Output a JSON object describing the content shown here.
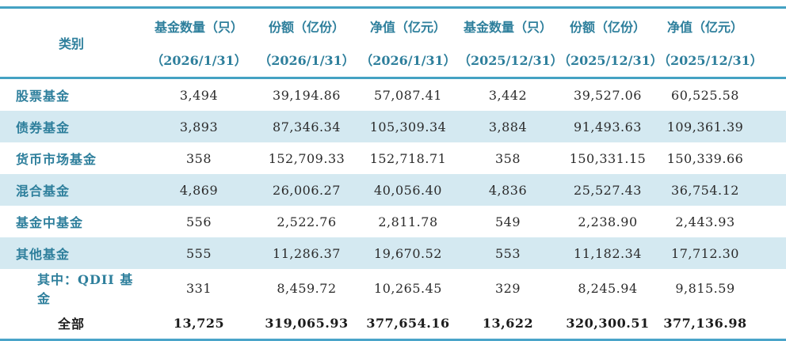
{
  "table": {
    "title_hint": "公募基金市场数据统计表",
    "columns": [
      {
        "title": "类别",
        "subtitle": ""
      },
      {
        "title": "基金数量（只）",
        "subtitle": "（2026/1/31）"
      },
      {
        "title": "份额（亿份）",
        "subtitle": "（2026/1/31）"
      },
      {
        "title": "净值（亿元）",
        "subtitle": "（2026/1/31）"
      },
      {
        "title": "基金数量（只）",
        "subtitle": "（2025/12/31）"
      },
      {
        "title": "份额（亿份）",
        "subtitle": "（2025/12/31）"
      },
      {
        "title": "净值（亿元）",
        "subtitle": "（2025/12/31）"
      }
    ],
    "rows": [
      {
        "label": "股票基金",
        "values": [
          "3,494",
          "39,194.86",
          "57,087.41",
          "3,442",
          "39,527.06",
          "60,525.58"
        ]
      },
      {
        "label": "债券基金",
        "values": [
          "3,893",
          "87,346.34",
          "105,309.34",
          "3,884",
          "91,493.63",
          "109,361.39"
        ]
      },
      {
        "label": "货币市场基金",
        "values": [
          "358",
          "152,709.33",
          "152,718.71",
          "358",
          "150,331.15",
          "150,339.66"
        ]
      },
      {
        "label": "混合基金",
        "values": [
          "4,869",
          "26,006.27",
          "40,056.40",
          "4,836",
          "25,527.43",
          "36,754.12"
        ]
      },
      {
        "label": "基金中基金",
        "values": [
          "556",
          "2,522.76",
          "2,811.78",
          "549",
          "2,238.90",
          "2,443.93"
        ]
      },
      {
        "label": "其他基金",
        "values": [
          "555",
          "11,286.37",
          "19,670.52",
          "553",
          "11,182.34",
          "17,712.30"
        ]
      },
      {
        "label": "其中：QDII 基金",
        "values": [
          "331",
          "8,459.72",
          "10,265.45",
          "329",
          "8,245.94",
          "9,815.59"
        ]
      },
      {
        "label": "全部",
        "values": [
          "13,725",
          "319,065.93",
          "377,654.16",
          "13,622",
          "320,300.51",
          "377,136.98"
        ]
      }
    ],
    "colors": {
      "accent_teal_text": "#2e7f9c",
      "border_teal": "#44a2c3",
      "band_light_blue": "#d4e9f1",
      "number_text": "#2b2b2b"
    }
  }
}
